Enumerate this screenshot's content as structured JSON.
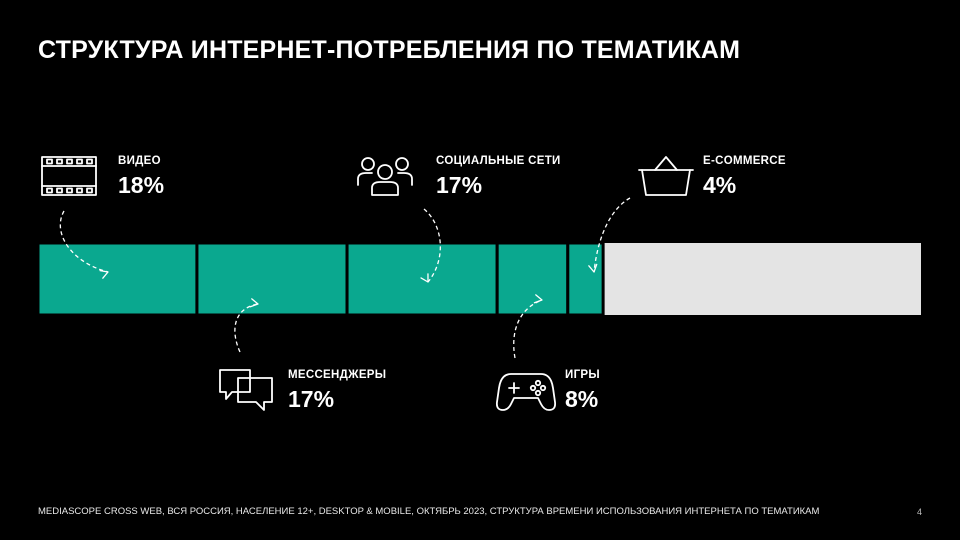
{
  "title": "СТРУКТУРА ИНТЕРНЕТ-ПОТРЕБЛЕНИЯ ПО ТЕМАТИКАМ",
  "footer": "MEDIASCOPE CROSS WEB, ВСЯ РОССИЯ, НАСЕЛЕНИЕ 12+, DESKTOP & MOBILE, ОКТЯБРЬ 2023, СТРУКТУРА ВРЕМЕНИ ИСПОЛЬЗОВАНИЯ ИНТЕРНЕТА ПО ТЕМАТИКАМ",
  "page_number": "4",
  "colors": {
    "segment": "#0aa88f",
    "remainder": "#e4e4e4",
    "background": "#000000"
  },
  "chart_data": {
    "type": "bar",
    "orientation": "horizontal-stacked",
    "categories": [
      "ВИДЕО",
      "МЕССЕНДЖЕРЫ",
      "СОЦИАЛЬНЫЕ СЕТИ",
      "ИГРЫ",
      "E-COMMERCE"
    ],
    "values": [
      18,
      17,
      17,
      8,
      4
    ],
    "labels": [
      "18%",
      "17%",
      "17%",
      "8%",
      "4%"
    ],
    "unit": "%",
    "total": 100,
    "icons": [
      "film-strip-icon",
      "chat-bubbles-icon",
      "people-group-icon",
      "gamepad-icon",
      "shopping-basket-icon"
    ],
    "label_positions": [
      "top",
      "bottom",
      "top",
      "bottom",
      "top"
    ]
  }
}
